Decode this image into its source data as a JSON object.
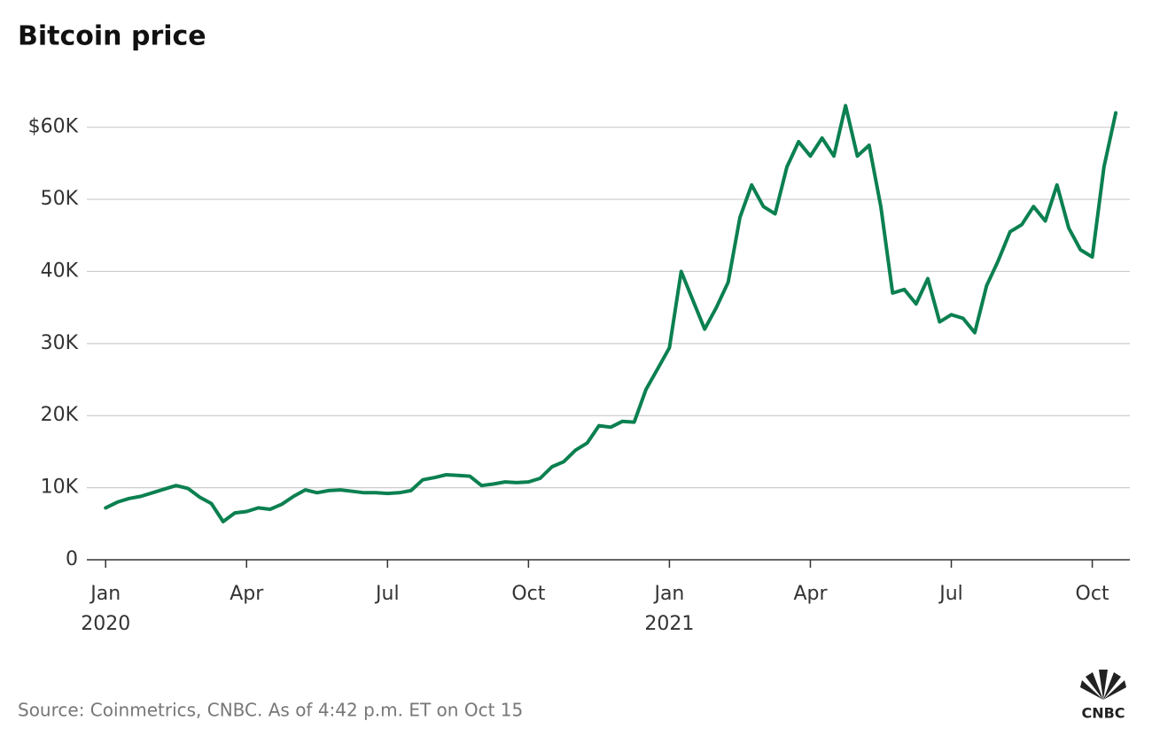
{
  "chart_data": {
    "type": "line",
    "title": "Bitcoin price",
    "source": "Source: Coinmetrics, CNBC. As of 4:42 p.m. ET on Oct 15",
    "logo_text": "CNBC",
    "color": "#0b8050",
    "x": [
      0,
      0.25,
      0.5,
      0.75,
      1,
      1.25,
      1.5,
      1.75,
      2,
      2.25,
      2.5,
      2.75,
      3,
      3.25,
      3.5,
      3.75,
      4,
      4.25,
      4.5,
      4.75,
      5,
      5.25,
      5.5,
      5.75,
      6,
      6.25,
      6.5,
      6.75,
      7,
      7.25,
      7.5,
      7.75,
      8,
      8.25,
      8.5,
      8.75,
      9,
      9.25,
      9.5,
      9.75,
      10,
      10.25,
      10.5,
      10.75,
      11,
      11.25,
      11.5,
      11.75,
      12,
      12.25,
      12.5,
      12.75,
      13,
      13.25,
      13.5,
      13.75,
      14,
      14.25,
      14.5,
      14.75,
      15,
      15.25,
      15.5,
      15.75,
      16,
      16.25,
      16.5,
      16.75,
      17,
      17.25,
      17.5,
      17.75,
      18,
      18.25,
      18.5,
      18.75,
      19,
      19.25,
      19.5,
      19.75,
      20,
      20.25,
      20.5,
      20.75,
      21,
      21.25,
      21.5
    ],
    "values": [
      7200,
      8000,
      8500,
      8800,
      9300,
      9800,
      10300,
      9900,
      8700,
      7800,
      5300,
      6500,
      6700,
      7200,
      7000,
      7700,
      8800,
      9700,
      9300,
      9600,
      9700,
      9500,
      9300,
      9300,
      9200,
      9300,
      9600,
      11100,
      11400,
      11800,
      11700,
      11600,
      10300,
      10500,
      10800,
      10700,
      10800,
      11300,
      12900,
      13600,
      15200,
      16200,
      18600,
      18400,
      19200,
      19100,
      23600,
      26500,
      29400,
      40000,
      36000,
      32000,
      35000,
      38500,
      47500,
      52000,
      49000,
      48000,
      54500,
      58000,
      56000,
      58500,
      56000,
      63000,
      56000,
      57500,
      49000,
      37000,
      37500,
      35500,
      39000,
      33000,
      34000,
      33500,
      31500,
      38000,
      41500,
      45500,
      46500,
      49000,
      47000,
      52000,
      46000,
      43000,
      42000,
      54500,
      62000
    ],
    "xlim": [
      -0.4,
      21.8
    ],
    "xticks": [
      {
        "value": 0,
        "label": "Jan"
      },
      {
        "value": 3,
        "label": "Apr"
      },
      {
        "value": 6,
        "label": "Jul"
      },
      {
        "value": 9,
        "label": "Oct"
      },
      {
        "value": 12,
        "label": "Jan"
      },
      {
        "value": 15,
        "label": "Apr"
      },
      {
        "value": 18,
        "label": "Jul"
      },
      {
        "value": 21,
        "label": "Oct"
      }
    ],
    "x_year_labels": [
      {
        "value": 0,
        "label": "2020"
      },
      {
        "value": 12,
        "label": "2021"
      }
    ],
    "ylim": [
      0,
      65000
    ],
    "yticks": [
      0,
      {
        "value": 10000,
        "label": "10K"
      },
      {
        "value": 20000,
        "label": "20K"
      },
      {
        "value": 30000,
        "label": "30K"
      },
      {
        "value": 40000,
        "label": "40K"
      },
      {
        "value": 50000,
        "label": "50K"
      },
      {
        "value": 60000,
        "label": "$60K"
      }
    ],
    "grid": true
  }
}
